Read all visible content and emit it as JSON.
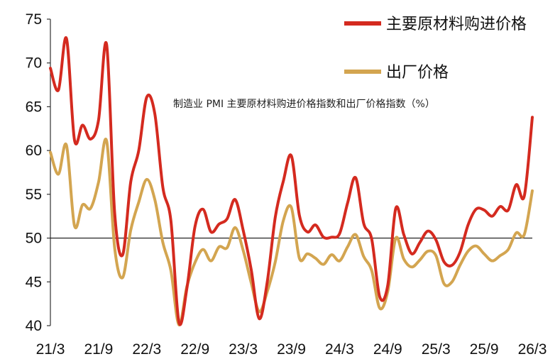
{
  "chart_data": {
    "type": "line",
    "title": "制造业 PMI 主要原材料购进价格指数和出厂价格指数（%）",
    "xlabel": "",
    "ylabel": "",
    "ylim": [
      40,
      75
    ],
    "yticks": [
      40,
      45,
      50,
      55,
      60,
      65,
      70,
      75
    ],
    "reference_line": 50,
    "grid": false,
    "legend_position": "top-right",
    "x_tick_labels": [
      "21/3",
      "21/9",
      "22/3",
      "22/9",
      "23/3",
      "23/9",
      "24/3",
      "24/9",
      "25/3",
      "25/9",
      "26/3"
    ],
    "x": [
      "21/3",
      "21/4",
      "21/5",
      "21/6",
      "21/7",
      "21/8",
      "21/9",
      "21/10",
      "21/11",
      "21/12",
      "22/1",
      "22/2",
      "22/3",
      "22/4",
      "22/5",
      "22/6",
      "22/7",
      "22/8",
      "22/9",
      "22/10",
      "22/11",
      "22/12",
      "23/1",
      "23/2",
      "23/3",
      "23/4",
      "23/5",
      "23/6",
      "23/7",
      "23/8",
      "23/9",
      "23/10",
      "23/11",
      "23/12",
      "24/1",
      "24/2",
      "24/3",
      "24/4",
      "24/5",
      "24/6",
      "24/7",
      "24/8",
      "24/9",
      "24/10",
      "24/11",
      "24/12",
      "25/1",
      "25/2",
      "25/3",
      "25/4",
      "25/5",
      "25/6",
      "25/7",
      "25/8",
      "25/9",
      "25/10",
      "25/11",
      "25/12",
      "26/1",
      "26/2",
      "26/3"
    ],
    "series": [
      {
        "name": "主要原材料购进价格",
        "color": "#d42a1f",
        "values": [
          69.4,
          66.9,
          72.8,
          61.2,
          62.9,
          61.3,
          63.5,
          72.1,
          52.9,
          48.1,
          56.4,
          60.0,
          66.1,
          64.2,
          55.8,
          52.0,
          40.4,
          44.3,
          51.3,
          53.3,
          50.7,
          51.6,
          52.2,
          54.4,
          50.9,
          46.4,
          40.8,
          45.0,
          52.4,
          56.5,
          59.4,
          52.6,
          50.7,
          51.5,
          50.1,
          50.1,
          50.5,
          54.0,
          56.9,
          51.7,
          49.9,
          43.3,
          44.6,
          53.4,
          50.4,
          48.2,
          49.5,
          50.8,
          49.8,
          47.3,
          46.9,
          48.4,
          51.5,
          53.3,
          53.2,
          52.5,
          53.6,
          53.2,
          56.1,
          54.8,
          63.8
        ]
      },
      {
        "name": "出厂价格",
        "color": "#d3a550",
        "values": [
          59.8,
          57.3,
          60.6,
          51.4,
          53.8,
          53.4,
          56.4,
          61.1,
          48.9,
          45.5,
          50.9,
          54.1,
          56.7,
          54.4,
          49.5,
          46.3,
          40.1,
          44.5,
          47.2,
          48.7,
          47.4,
          49.0,
          48.9,
          51.2,
          48.6,
          44.9,
          41.6,
          43.9,
          47.3,
          52.0,
          53.5,
          47.7,
          48.2,
          47.7,
          47.0,
          48.1,
          47.4,
          49.0,
          50.4,
          47.9,
          46.3,
          42.0,
          43.9,
          50.0,
          47.6,
          46.7,
          47.5,
          48.5,
          48.0,
          44.8,
          45.0,
          46.9,
          48.5,
          49.1,
          48.2,
          47.4,
          48.0,
          48.7,
          50.6,
          50.4,
          55.4
        ]
      }
    ]
  }
}
